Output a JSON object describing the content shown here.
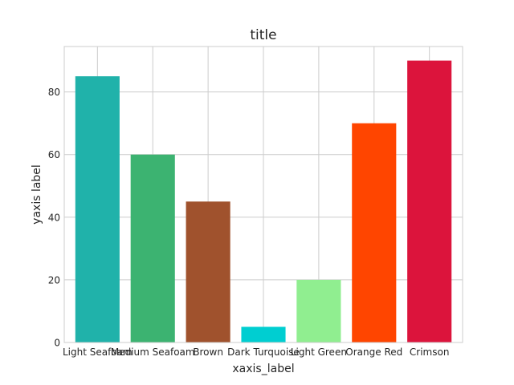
{
  "chart_data": {
    "type": "bar",
    "title": "title",
    "xlabel": "xaxis_label",
    "ylabel": "yaxis label",
    "categories": [
      "Light Seafoam",
      "Medium Seafoam",
      "Brown",
      "Dark Turquoise",
      "Light Green",
      "Orange Red",
      "Crimson"
    ],
    "values": [
      85,
      60,
      45,
      5,
      20,
      70,
      90
    ],
    "colors": [
      "#20b2aa",
      "#3cb371",
      "#a0522d",
      "#00ced1",
      "#90ee90",
      "#ff4500",
      "#dc143c"
    ],
    "ylim": [
      0,
      94.5
    ],
    "yticks": [
      0,
      20,
      40,
      60,
      80
    ],
    "grid": true,
    "legend": "none"
  }
}
